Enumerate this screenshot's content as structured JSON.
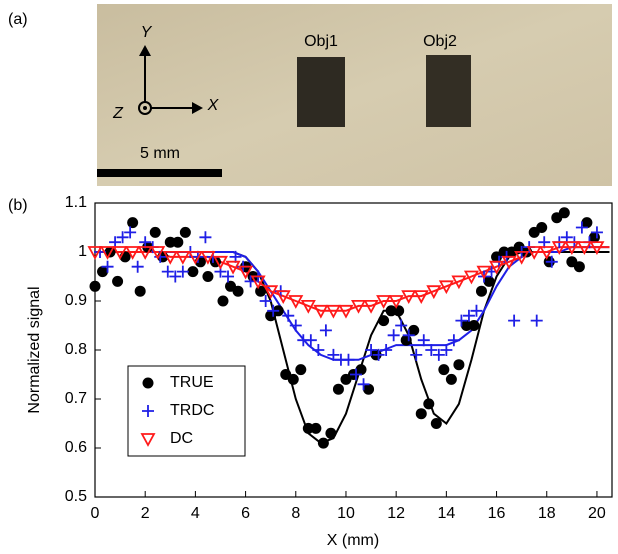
{
  "photo": {
    "label": "(a)",
    "objects": [
      "Obj1",
      "Obj2"
    ],
    "axis_y": "Y",
    "axis_x": "X",
    "axis_z": "Z",
    "scale_bar": "5 mm"
  },
  "chart_data": {
    "type": "scatter",
    "label": "(b)",
    "x_label": "X (mm)",
    "y_label": "Normalized signal",
    "xlim": [
      0,
      20.6
    ],
    "ylim": [
      0.5,
      1.1
    ],
    "xticks": [
      0,
      2,
      4,
      6,
      8,
      10,
      12,
      14,
      16,
      18,
      20
    ],
    "yticks": [
      0.5,
      0.6,
      0.7,
      0.8,
      0.9,
      1,
      1.1
    ],
    "legend": "lower left",
    "series": [
      {
        "name": "TRUE",
        "color": "#000000",
        "marker": "circle",
        "x": [
          0,
          0.3,
          0.6,
          0.9,
          1.2,
          1.5,
          1.8,
          2.1,
          2.4,
          2.7,
          3.0,
          3.3,
          3.6,
          3.9,
          4.2,
          4.5,
          4.8,
          5.1,
          5.4,
          5.7,
          6.0,
          6.3,
          6.6,
          7.0,
          7.3,
          7.6,
          7.9,
          8.2,
          8.5,
          8.8,
          9.1,
          9.4,
          9.7,
          10.0,
          10.3,
          10.6,
          10.9,
          11.2,
          11.5,
          11.8,
          12.1,
          12.4,
          12.7,
          13.0,
          13.3,
          13.6,
          13.9,
          14.2,
          14.5,
          14.8,
          15.1,
          15.4,
          15.7,
          16.0,
          16.3,
          16.6,
          16.9,
          17.2,
          17.5,
          17.8,
          18.1,
          18.4,
          18.7,
          19.0,
          19.3,
          19.6,
          19.9
        ],
        "values": [
          0.93,
          0.96,
          1.0,
          0.94,
          0.99,
          1.06,
          0.92,
          1.01,
          1.04,
          0.99,
          1.02,
          1.02,
          1.04,
          0.96,
          0.98,
          0.95,
          0.98,
          0.9,
          0.93,
          0.92,
          0.97,
          0.95,
          0.92,
          0.87,
          0.88,
          0.75,
          0.74,
          0.76,
          0.64,
          0.64,
          0.61,
          0.63,
          0.72,
          0.74,
          0.75,
          0.76,
          0.72,
          0.79,
          0.86,
          0.88,
          0.88,
          0.82,
          0.84,
          0.67,
          0.69,
          0.65,
          0.76,
          0.74,
          0.77,
          0.85,
          0.85,
          0.92,
          0.94,
          0.99,
          1.0,
          1.0,
          1.01,
          1.0,
          1.04,
          1.05,
          0.98,
          1.07,
          1.08,
          0.98,
          0.97,
          1.06,
          1.03
        ]
      },
      {
        "name": "TRDC",
        "color": "#1f1fe6",
        "marker": "plus",
        "x": [
          0.2,
          0.5,
          0.8,
          1.1,
          1.4,
          1.7,
          2.0,
          2.3,
          2.6,
          2.9,
          3.2,
          3.5,
          3.8,
          4.1,
          4.4,
          4.7,
          5.0,
          5.3,
          5.6,
          5.9,
          6.2,
          6.5,
          6.8,
          7.1,
          7.4,
          7.7,
          8.0,
          8.3,
          8.6,
          8.9,
          9.2,
          9.5,
          9.8,
          10.1,
          10.4,
          10.7,
          11.0,
          11.3,
          11.6,
          11.9,
          12.2,
          12.5,
          12.8,
          13.1,
          13.4,
          13.7,
          14.0,
          14.3,
          14.6,
          14.9,
          15.2,
          15.5,
          15.8,
          16.1,
          16.4,
          16.7,
          17.0,
          17.3,
          17.6,
          17.9,
          18.2,
          18.5,
          18.8,
          19.1,
          19.4,
          19.7,
          20.0
        ],
        "values": [
          1.0,
          0.97,
          1.02,
          1.03,
          1.04,
          0.97,
          1.02,
          1.01,
          0.99,
          0.96,
          0.95,
          0.96,
          1.0,
          0.99,
          1.03,
          0.99,
          0.96,
          0.95,
          0.99,
          0.97,
          0.94,
          0.95,
          0.9,
          0.88,
          0.92,
          0.87,
          0.85,
          0.82,
          0.82,
          0.8,
          0.84,
          0.79,
          0.78,
          0.78,
          0.75,
          0.73,
          0.8,
          0.79,
          0.8,
          0.83,
          0.85,
          0.83,
          0.79,
          0.82,
          0.8,
          0.79,
          0.8,
          0.82,
          0.86,
          0.87,
          0.88,
          0.95,
          0.96,
          0.98,
          0.99,
          0.86,
          1.0,
          1.01,
          0.86,
          1.02,
          0.98,
          1.02,
          1.03,
          1.02,
          1.05,
          1.02,
          1.04
        ]
      },
      {
        "name": "DC",
        "color": "#ff1a1a",
        "marker": "triangle-down",
        "x": [
          0,
          0.5,
          1,
          1.5,
          2,
          2.5,
          3,
          3.5,
          4,
          4.5,
          5,
          5.5,
          6,
          6.5,
          7,
          7.5,
          8,
          8.5,
          9,
          9.5,
          10,
          10.5,
          11,
          11.5,
          12,
          12.5,
          13,
          13.5,
          14,
          14.5,
          15,
          15.5,
          16,
          16.5,
          17,
          17.5,
          18,
          18.5,
          19,
          19.5,
          20
        ],
        "values": [
          1.0,
          1.0,
          1.0,
          1.0,
          1.0,
          1.0,
          0.99,
          0.99,
          0.99,
          0.99,
          0.98,
          0.97,
          0.96,
          0.94,
          0.92,
          0.91,
          0.9,
          0.89,
          0.88,
          0.88,
          0.88,
          0.89,
          0.89,
          0.9,
          0.9,
          0.91,
          0.91,
          0.92,
          0.93,
          0.94,
          0.95,
          0.96,
          0.97,
          0.98,
          0.99,
          1.0,
          1.0,
          1.01,
          1.01,
          1.01,
          1.01
        ]
      }
    ],
    "lines": [
      {
        "color": "#000000",
        "x": [
          0,
          0.5,
          1,
          1.5,
          2,
          2.5,
          3,
          3.5,
          4,
          4.5,
          5,
          5.5,
          6,
          6.5,
          7,
          7.5,
          8,
          8.5,
          9,
          9.5,
          10,
          10.5,
          11,
          11.5,
          12,
          12.5,
          13,
          13.5,
          14,
          14.5,
          15,
          15.5,
          16,
          16.5,
          17,
          17.5,
          18,
          18.5,
          19,
          19.5,
          20,
          20.5
        ],
        "values": [
          1,
          1,
          1,
          1,
          1,
          1,
          1,
          1,
          1,
          1,
          1,
          1,
          0.99,
          0.96,
          0.9,
          0.8,
          0.7,
          0.63,
          0.61,
          0.62,
          0.67,
          0.75,
          0.83,
          0.88,
          0.88,
          0.83,
          0.74,
          0.67,
          0.65,
          0.69,
          0.78,
          0.88,
          0.95,
          0.99,
          1,
          1,
          1,
          1,
          1,
          1,
          1,
          1
        ]
      },
      {
        "color": "#1f1fe6",
        "x": [
          0,
          0.5,
          1,
          1.5,
          2,
          2.5,
          3,
          3.5,
          4,
          4.5,
          5,
          5.5,
          6,
          6.5,
          7,
          7.5,
          8,
          8.5,
          9,
          9.5,
          10,
          10.5,
          11,
          11.5,
          12,
          12.5,
          13,
          13.5,
          14,
          14.5,
          15,
          15.5,
          16,
          16.5,
          17,
          17.5,
          18,
          18.5,
          19,
          19.5,
          20,
          20.5
        ],
        "values": [
          1,
          1,
          1,
          1,
          1,
          1,
          1,
          1,
          1,
          1,
          1,
          1,
          0.99,
          0.96,
          0.92,
          0.88,
          0.84,
          0.81,
          0.79,
          0.78,
          0.78,
          0.78,
          0.79,
          0.8,
          0.81,
          0.81,
          0.81,
          0.81,
          0.81,
          0.82,
          0.84,
          0.88,
          0.93,
          0.97,
          0.99,
          1,
          1,
          1,
          1.01,
          1.01,
          1.01,
          1.01
        ]
      },
      {
        "color": "#ff1a1a",
        "x": [
          0,
          0.5,
          1,
          1.5,
          2,
          2.5,
          3,
          3.5,
          4,
          4.5,
          5,
          5.5,
          6,
          6.5,
          7,
          7.5,
          8,
          8.5,
          9,
          9.5,
          10,
          10.5,
          11,
          11.5,
          12,
          12.5,
          13,
          13.5,
          14,
          14.5,
          15,
          15.5,
          16,
          16.5,
          17,
          17.5,
          18,
          18.5,
          19,
          19.5,
          20,
          20.5
        ],
        "values": [
          1,
          1,
          1,
          1,
          1,
          1,
          0.99,
          0.99,
          0.99,
          0.99,
          0.98,
          0.97,
          0.96,
          0.94,
          0.92,
          0.91,
          0.9,
          0.89,
          0.88,
          0.88,
          0.88,
          0.89,
          0.89,
          0.9,
          0.9,
          0.91,
          0.91,
          0.92,
          0.93,
          0.94,
          0.95,
          0.96,
          0.97,
          0.98,
          0.99,
          1,
          1,
          1.01,
          1.01,
          1.01,
          1.01,
          1.01
        ]
      }
    ]
  }
}
